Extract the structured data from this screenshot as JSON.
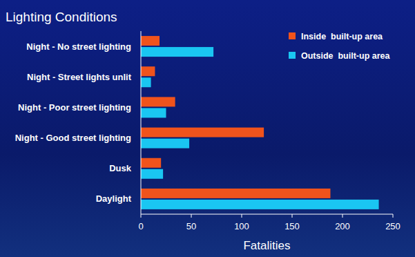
{
  "chart_data": {
    "type": "bar",
    "orientation": "horizontal",
    "title": "Lighting Conditions",
    "x_label": "Fatalities",
    "categories": [
      "Night - No street lighting",
      "Night - Street lights unlit",
      "Night - Poor street lighting",
      "Night - Good street lighting",
      "Dusk",
      "Daylight"
    ],
    "series": [
      {
        "name": "Inside  built-up area",
        "color": "#f0531c",
        "values": [
          18.5,
          14,
          34,
          122,
          20,
          188
        ]
      },
      {
        "name": "Outside  built-up area",
        "color": "#1ac6f2",
        "values": [
          72,
          10,
          25,
          48,
          22,
          236
        ]
      }
    ],
    "xlim": [
      0,
      250
    ],
    "xticks": [
      0,
      50,
      100,
      150,
      200,
      250
    ],
    "grid": false,
    "legend": "upper right"
  }
}
